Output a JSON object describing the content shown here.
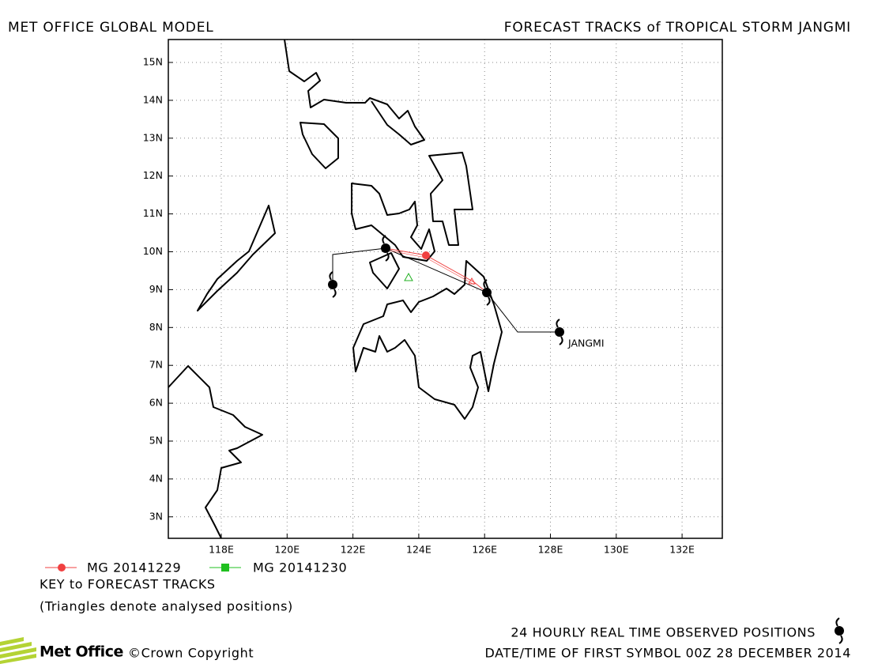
{
  "header": {
    "left": "MET OFFICE GLOBAL MODEL",
    "right": "FORECAST TRACKS of TROPICAL STORM JANGMI"
  },
  "map": {
    "lat_labels": [
      "15N",
      "14N",
      "13N",
      "12N",
      "11N",
      "10N",
      "9N",
      "8N",
      "7N",
      "6N",
      "5N",
      "4N",
      "3N"
    ],
    "lon_labels": [
      "118E",
      "120E",
      "122E",
      "124E",
      "126E",
      "128E",
      "130E",
      "132E"
    ],
    "storm_label": "JANGMI"
  },
  "legend": {
    "items": [
      "MG 20141229",
      "MG 20141230"
    ],
    "key": "KEY to FORECAST TRACKS",
    "note": "(Triangles denote analysed positions)"
  },
  "footer": {
    "logo": "Met Office",
    "copyright": "©Crown Copyright",
    "observed": "24 HOURLY REAL TIME OBSERVED POSITIONS",
    "datetime": "DATE/TIME OF FIRST SYMBOL 00Z 28 DECEMBER 2014"
  }
}
